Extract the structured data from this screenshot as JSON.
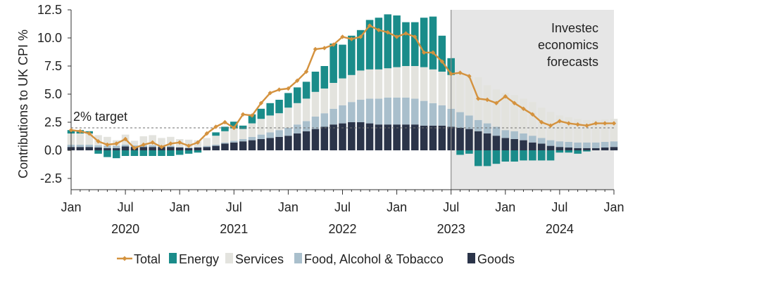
{
  "chart_data": {
    "type": "bar",
    "stacked": true,
    "ylabel": "Contributions to UK CPI %",
    "ylim": [
      -3.5,
      12.5
    ],
    "yticks": [
      -2.5,
      0.0,
      2.5,
      5.0,
      7.5,
      10.0,
      12.5
    ],
    "ytick_labels": [
      "-2.5",
      "0.0",
      "2.5",
      "5.0",
      "7.5",
      "10.0",
      "12.5"
    ],
    "x_tick_labels": [
      "Jan",
      "Jul",
      "Jan",
      "Jul",
      "Jan",
      "Jul",
      "Jan",
      "Jul",
      "Jan",
      "Jul",
      "Jan"
    ],
    "year_labels": [
      "2020",
      "2021",
      "2022",
      "2023",
      "2024"
    ],
    "start": "2020-01",
    "periods": 61,
    "forecast_start_index": 42,
    "forecast_label": "Investec economics forecasts",
    "forecast_label_lines": [
      "Investec",
      "economics",
      "forecasts"
    ],
    "target_value": 2.0,
    "target_label": "2% target",
    "legend_position": "bottom",
    "series": [
      {
        "name": "Goods",
        "type": "bar",
        "color": "#2b3449",
        "values": [
          0.3,
          0.3,
          0.3,
          0.25,
          0.2,
          0.2,
          0.35,
          0.3,
          0.3,
          0.3,
          0.3,
          0.3,
          0.25,
          0.2,
          0.25,
          0.3,
          0.4,
          0.6,
          0.7,
          0.8,
          0.9,
          1.0,
          1.1,
          1.2,
          1.3,
          1.5,
          1.7,
          1.9,
          2.1,
          2.3,
          2.4,
          2.5,
          2.5,
          2.4,
          2.3,
          2.3,
          2.3,
          2.3,
          2.3,
          2.2,
          2.2,
          2.2,
          2.1,
          2.0,
          1.9,
          1.7,
          1.5,
          1.3,
          1.1,
          1.0,
          0.9,
          0.7,
          0.6,
          0.4,
          0.3,
          0.25,
          0.2,
          0.2,
          0.2,
          0.25,
          0.3
        ]
      },
      {
        "name": "Food, Alcohol & Tobacco",
        "type": "bar",
        "color": "#a9bfcc",
        "values": [
          0.2,
          0.2,
          0.2,
          0.2,
          0.2,
          0.2,
          0.15,
          0.15,
          0.15,
          0.15,
          0.1,
          0.1,
          0.05,
          0.05,
          0.05,
          0.1,
          0.1,
          0.1,
          0.15,
          0.2,
          0.3,
          0.4,
          0.5,
          0.6,
          0.7,
          0.8,
          0.9,
          1.1,
          1.2,
          1.4,
          1.6,
          1.8,
          2.0,
          2.2,
          2.3,
          2.4,
          2.4,
          2.4,
          2.3,
          2.2,
          2.0,
          1.8,
          1.6,
          1.4,
          1.2,
          1.0,
          0.9,
          0.8,
          0.7,
          0.7,
          0.6,
          0.6,
          0.5,
          0.5,
          0.5,
          0.5,
          0.5,
          0.5,
          0.5,
          0.5,
          0.5
        ]
      },
      {
        "name": "Services",
        "type": "bar",
        "color": "#e3e3de",
        "values": [
          1.0,
          1.0,
          1.0,
          0.9,
          0.8,
          0.5,
          0.9,
          0.4,
          0.8,
          0.9,
          0.7,
          0.8,
          0.7,
          0.7,
          0.6,
          0.7,
          0.8,
          1.0,
          1.1,
          0.9,
          1.2,
          1.4,
          1.5,
          1.5,
          1.8,
          1.9,
          2.0,
          2.2,
          2.2,
          2.3,
          2.4,
          2.4,
          2.6,
          2.6,
          2.6,
          2.6,
          2.7,
          2.8,
          2.9,
          3.0,
          3.0,
          3.0,
          3.0,
          3.5,
          3.5,
          3.8,
          3.4,
          3.3,
          3.3,
          3.2,
          3.1,
          3.0,
          2.7,
          2.5,
          2.3,
          2.2,
          2.1,
          2.0,
          2.0,
          2.0,
          2.0
        ]
      },
      {
        "name": "Energy",
        "type": "bar",
        "color": "#1a8c8a",
        "values": [
          0.3,
          0.3,
          0.2,
          -0.3,
          -0.6,
          -0.7,
          -0.5,
          -0.5,
          -0.5,
          -0.5,
          -0.5,
          -0.5,
          -0.4,
          -0.3,
          -0.2,
          0.0,
          0.3,
          0.4,
          0.6,
          0.3,
          0.8,
          0.9,
          1.1,
          1.2,
          1.3,
          1.4,
          1.5,
          1.8,
          2.0,
          3.5,
          3.0,
          3.5,
          3.6,
          4.4,
          4.6,
          4.8,
          4.6,
          3.9,
          3.9,
          4.4,
          4.7,
          3.2,
          1.5,
          -0.4,
          -0.3,
          -1.4,
          -1.4,
          -1.2,
          -1.0,
          -1.0,
          -0.9,
          -0.9,
          -0.9,
          -0.9,
          -0.2,
          -0.2,
          -0.3,
          -0.1,
          0.0,
          0.0,
          0.0
        ]
      },
      {
        "name": "Total",
        "type": "line",
        "color": "#d4923e",
        "values": [
          1.8,
          1.7,
          1.5,
          0.8,
          0.5,
          0.6,
          1.0,
          0.2,
          0.5,
          0.7,
          0.3,
          0.6,
          0.7,
          0.4,
          0.7,
          1.5,
          2.1,
          2.5,
          2.0,
          3.2,
          3.1,
          4.2,
          5.1,
          5.4,
          5.5,
          6.2,
          7.0,
          9.0,
          9.1,
          9.4,
          10.1,
          9.9,
          10.1,
          11.1,
          10.7,
          10.5,
          10.1,
          10.4,
          10.1,
          8.7,
          8.7,
          7.9,
          6.8,
          6.9,
          6.6,
          4.6,
          4.5,
          4.2,
          4.8,
          4.2,
          3.7,
          3.2,
          2.5,
          2.2,
          2.6,
          2.4,
          2.3,
          2.2,
          2.4,
          2.4,
          2.4
        ]
      }
    ],
    "legend": [
      {
        "label": "Total",
        "kind": "line",
        "color": "#d4923e"
      },
      {
        "label": "Energy",
        "kind": "box",
        "color": "#1a8c8a"
      },
      {
        "label": "Services",
        "kind": "box",
        "color": "#e3e3de"
      },
      {
        "label": "Food, Alcohol & Tobacco",
        "kind": "box",
        "color": "#a9bfcc"
      },
      {
        "label": "Goods",
        "kind": "box",
        "color": "#2b3449"
      }
    ],
    "colors": {
      "forecast_shade": "#e6e6e6",
      "forecast_divider": "#8c8c8c",
      "target_line": "#6f6f6f",
      "axis": "#333333"
    }
  }
}
